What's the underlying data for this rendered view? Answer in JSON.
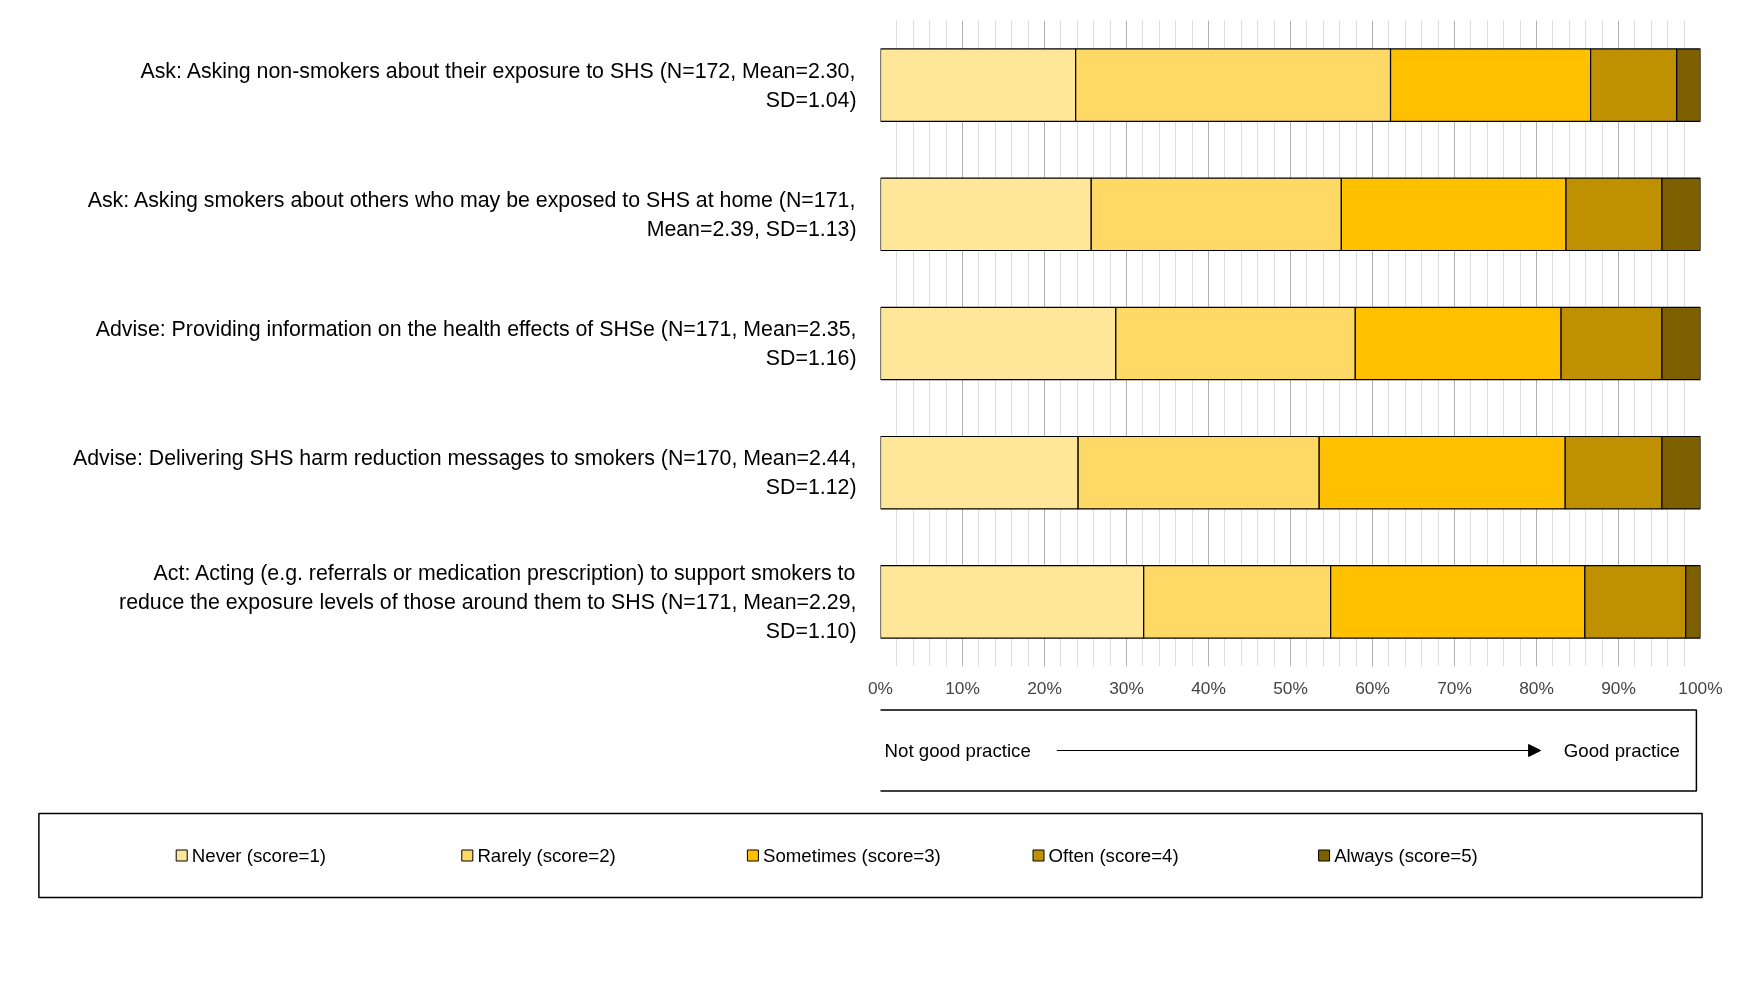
{
  "chart_data": {
    "type": "bar",
    "orientation": "horizontal",
    "stacked": true,
    "categories": [
      "Ask: Asking non-smokers about their exposure to SHS (N=172, Mean=2.30, SD=1.04)",
      "Ask: Asking smokers about others who may be exposed to SHS at home (N=171, Mean=2.39, SD=1.13)",
      "Advise: Providing information on the health effects of SHSe (N=171, Mean=2.35, SD=1.16)",
      "Advise: Delivering SHS harm reduction messages to smokers (N=170, Mean=2.44, SD=1.12)",
      "Act: Acting (e.g. referrals or medication prescription) to support smokers to reduce the exposure levels of those around them to SHS (N=171, Mean=2.29, SD=1.10)"
    ],
    "series": [
      {
        "name": "Never (score=1)",
        "color": "#ffe699",
        "values": [
          23.8,
          25.7,
          28.7,
          24.1,
          32.1
        ]
      },
      {
        "name": "Rarely (score=2)",
        "color": "#ffd966",
        "values": [
          38.4,
          30.5,
          29.2,
          29.4,
          22.8
        ]
      },
      {
        "name": "Sometimes (score=3)",
        "color": "#ffc000",
        "values": [
          24.4,
          27.4,
          25.1,
          30.0,
          31.0
        ]
      },
      {
        "name": "Often (score=4)",
        "color": "#bf9000",
        "values": [
          10.5,
          11.7,
          12.3,
          11.8,
          12.3
        ]
      },
      {
        "name": "Always (score=5)",
        "color": "#7f6000",
        "values": [
          2.9,
          4.7,
          4.7,
          4.7,
          1.8
        ]
      }
    ],
    "xlim": [
      0,
      100
    ],
    "xticks": [
      {
        "value": 0,
        "label": "0%"
      },
      {
        "value": 10,
        "label": "10%"
      },
      {
        "value": 20,
        "label": "20%"
      },
      {
        "value": 30,
        "label": "30%"
      },
      {
        "value": 40,
        "label": "40%"
      },
      {
        "value": 50,
        "label": "50%"
      },
      {
        "value": 60,
        "label": "60%"
      },
      {
        "value": 70,
        "label": "70%"
      },
      {
        "value": 80,
        "label": "80%"
      },
      {
        "value": 90,
        "label": "90%"
      },
      {
        "value": 100,
        "label": "100%"
      }
    ],
    "grid": "x",
    "legend": "bottom",
    "annotations": [
      "Not good practice",
      "Good practice"
    ]
  }
}
